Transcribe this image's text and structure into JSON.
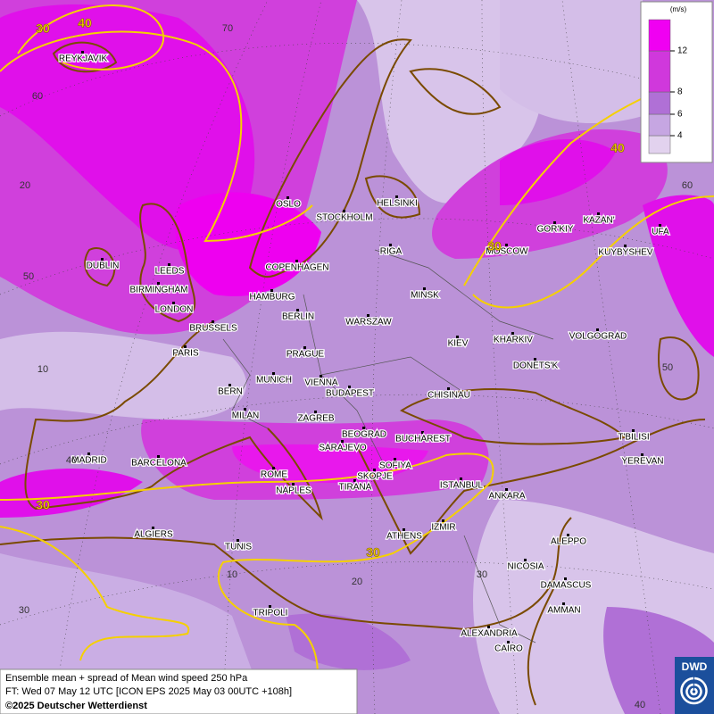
{
  "legend": {
    "unit": "(m/s)",
    "ticks": [
      4,
      6,
      8,
      12
    ],
    "colors": [
      "#e2d2ee",
      "#c6a6e2",
      "#b070d6",
      "#d038dc",
      "#f000f2"
    ]
  },
  "cities": [
    "REYKJAVIK",
    "OSLO",
    "STOCKHOLM",
    "HELSINKI",
    "DUBLIN",
    "LEEDS",
    "BIRMINGHAM",
    "LONDON",
    "COPENHAGEN",
    "HAMBURG",
    "RIGA",
    "MOSCOW",
    "GOR'KIY",
    "KAZAN'",
    "UFA",
    "KUYBYSHEV",
    "MINSK",
    "BERLIN",
    "WARSZAW",
    "KIEV",
    "KHARKIV",
    "VOLGOGRAD",
    "BRUSSELS",
    "PARIS",
    "PRAGUE",
    "DONETS'K",
    "MUNICH",
    "VIENNA",
    "BERN",
    "BUDAPEST",
    "CHISINAU",
    "MILAN",
    "ZAGREB",
    "BEOGRAD",
    "BUCHAREST",
    "T'BILISI",
    "SARAJEVO",
    "MADRID",
    "BARCELONA",
    "ROME",
    "SOFIYA",
    "SKOPJE",
    "YEREVAN",
    "TIRANA",
    "ISTANBUL",
    "NAPLES",
    "ANKARA",
    "ALGIERS",
    "IZMIR",
    "ATHENS",
    "ALEPPO",
    "TUNIS",
    "NICOSIA",
    "DAMASCUS",
    "TRIPOLI",
    "AMMAN",
    "ALEXANDRIA",
    "CAIRO"
  ],
  "graticule_labels": [
    "70",
    "60",
    "20",
    "50",
    "10",
    "40",
    "30",
    "10",
    "20",
    "30",
    "40",
    "60",
    "50"
  ],
  "contour_labels": [
    "30",
    "40",
    "40",
    "30",
    "30",
    "30"
  ],
  "footer": {
    "description": "Ensemble mean + spread of Mean wind speed 250 hPa",
    "forecast_time": "FT: Wed 07 May 12 UTC [ICON EPS 2025 May 03 00UTC +108h]",
    "copyright": "©2025 Deutscher Wetterdienst"
  },
  "logo": "DWD"
}
